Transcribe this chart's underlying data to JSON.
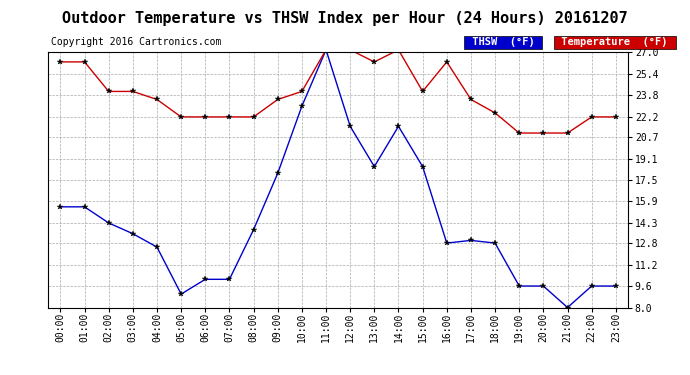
{
  "title": "Outdoor Temperature vs THSW Index per Hour (24 Hours) 20161207",
  "copyright": "Copyright 2016 Cartronics.com",
  "hours": [
    "00:00",
    "01:00",
    "02:00",
    "03:00",
    "04:00",
    "05:00",
    "06:00",
    "07:00",
    "08:00",
    "09:00",
    "10:00",
    "11:00",
    "12:00",
    "13:00",
    "14:00",
    "15:00",
    "16:00",
    "17:00",
    "18:00",
    "19:00",
    "20:00",
    "21:00",
    "22:00",
    "23:00"
  ],
  "thsw": [
    15.5,
    15.5,
    14.3,
    13.5,
    12.5,
    9.0,
    10.1,
    10.1,
    13.8,
    18.0,
    23.0,
    27.2,
    21.5,
    18.5,
    21.5,
    18.5,
    12.8,
    13.0,
    12.8,
    9.6,
    9.6,
    8.0,
    9.6,
    9.6
  ],
  "temperature": [
    26.3,
    26.3,
    24.1,
    24.1,
    23.5,
    22.2,
    22.2,
    22.2,
    22.2,
    23.5,
    24.1,
    27.2,
    27.2,
    26.3,
    27.2,
    24.1,
    26.3,
    23.5,
    22.5,
    21.0,
    21.0,
    21.0,
    22.2,
    22.2
  ],
  "thsw_color": "#0000cc",
  "temp_color": "#cc0000",
  "background_color": "#ffffff",
  "grid_color": "#aaaaaa",
  "ylim_min": 8.0,
  "ylim_max": 27.0,
  "yticks": [
    8.0,
    9.6,
    11.2,
    12.8,
    14.3,
    15.9,
    17.5,
    19.1,
    20.7,
    22.2,
    23.8,
    25.4,
    27.0
  ],
  "title_fontsize": 11,
  "copyright_fontsize": 7,
  "tick_fontsize": 7,
  "legend_thsw_label": "THSW  (°F)",
  "legend_temp_label": "Temperature  (°F)"
}
